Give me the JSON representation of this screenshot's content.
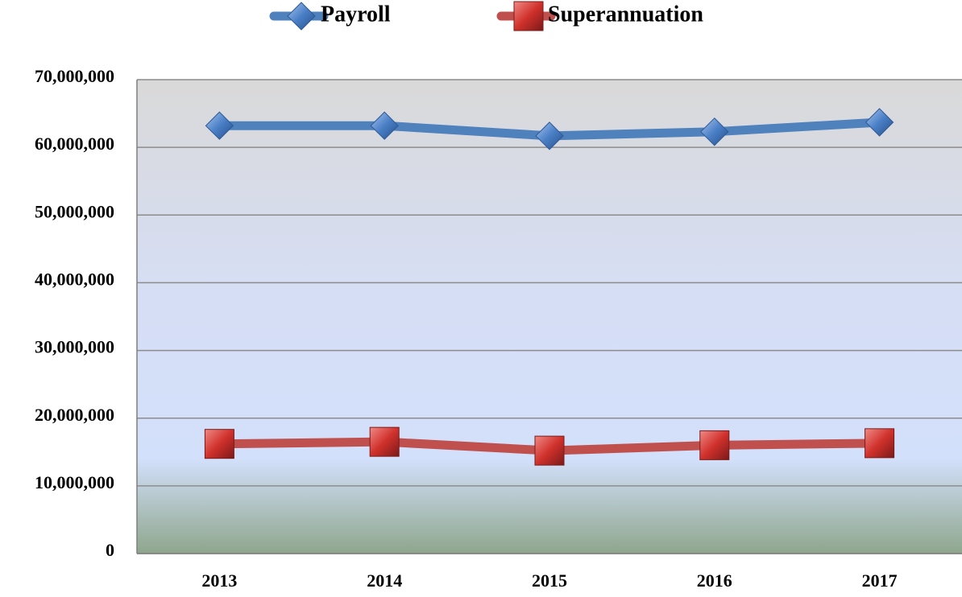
{
  "chart_data": {
    "type": "line",
    "categories": [
      "2013",
      "2014",
      "2015",
      "2016",
      "2017"
    ],
    "series": [
      {
        "name": "Payroll",
        "color": "#4f81bd",
        "marker": "diamond",
        "values": [
          63200000,
          63200000,
          61700000,
          62300000,
          63700000
        ]
      },
      {
        "name": "Superannuation",
        "color": "#c0504d",
        "marker": "square",
        "values": [
          16200000,
          16500000,
          15200000,
          16000000,
          16300000
        ]
      }
    ],
    "ylim": [
      0,
      70000000
    ],
    "yticks": [
      0,
      {
        "value": 10000000,
        "label": "10,000,000"
      },
      {
        "value": 20000000,
        "label": "20,000,000"
      },
      {
        "value": 30000000,
        "label": "30,000,000"
      },
      {
        "value": 40000000,
        "label": "40,000,000"
      },
      {
        "value": 50000000,
        "label": "50,000,000"
      },
      {
        "value": 60000000,
        "label": "60,000,000"
      },
      {
        "value": 70000000,
        "label": "70,000,000"
      }
    ],
    "grid": true,
    "legend": "top"
  }
}
